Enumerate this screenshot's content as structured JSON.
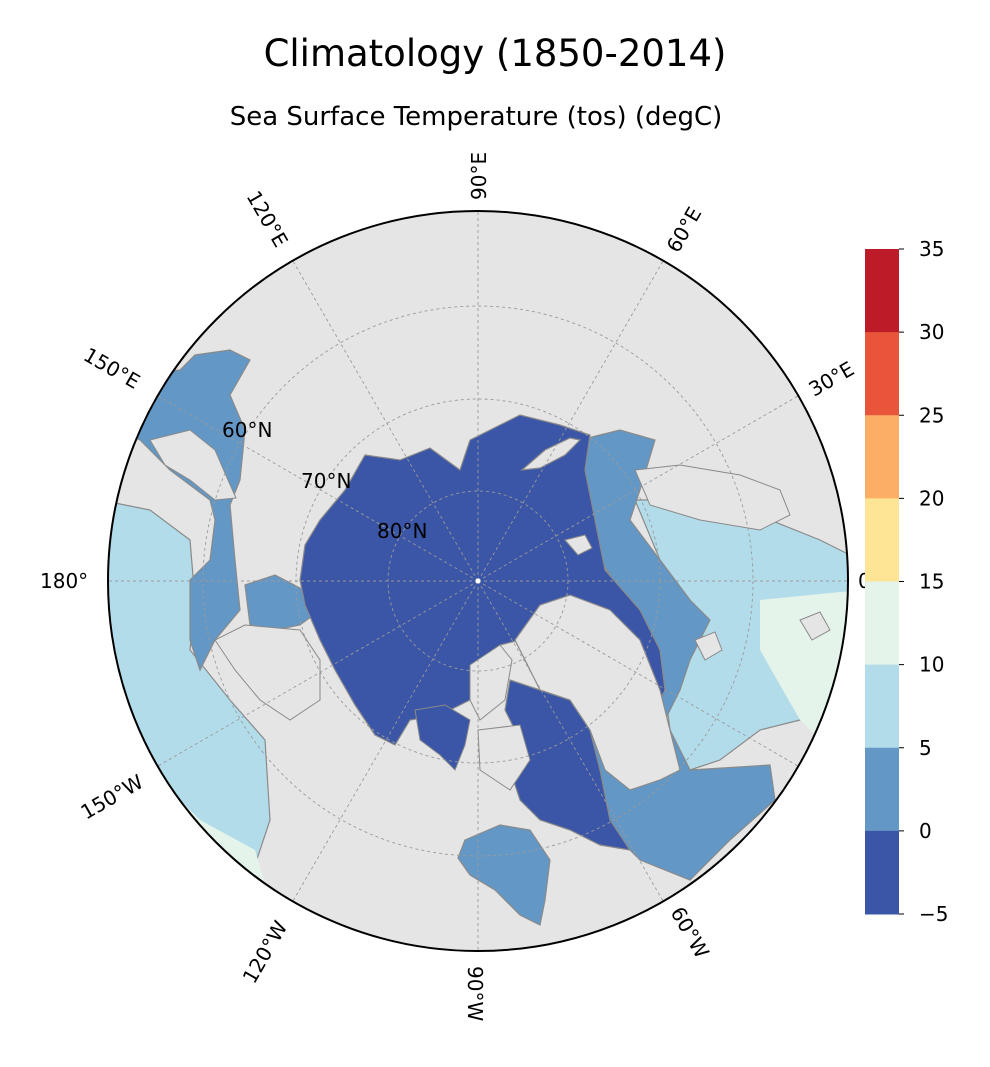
{
  "title": "Climatology (1850-2014)",
  "subtitle": "Sea Surface Temperature (tos) (degC)",
  "map": {
    "projection": "north-polar-stereographic",
    "longitude_labels": [
      "90°E",
      "120°E",
      "60°E",
      "150°E",
      "30°E",
      "180°",
      "0°",
      "150°W",
      "120°W",
      "90°W",
      "60°W"
    ],
    "latitude_labels": [
      "60°N",
      "70°N",
      "80°N"
    ]
  },
  "colorbar": {
    "ticks": [
      "35",
      "30",
      "25",
      "20",
      "15",
      "10",
      "5",
      "0",
      "−5"
    ],
    "bins": [
      {
        "range": "30-35",
        "color": "#bd1b28"
      },
      {
        "range": "25-30",
        "color": "#e9553a"
      },
      {
        "range": "20-25",
        "color": "#fcae64"
      },
      {
        "range": "15-20",
        "color": "#fee596"
      },
      {
        "range": "10-15",
        "color": "#e4f4ea"
      },
      {
        "range": "5-10",
        "color": "#b3dcea"
      },
      {
        "range": "0-5",
        "color": "#6397c6"
      },
      {
        "range": "-5-0",
        "color": "#3b56a6"
      }
    ]
  },
  "colors": {
    "land": "#e5e5e5",
    "coast": "#8a8a8a",
    "ice_ocean": "#3b56a6",
    "cold_ocean": "#6397c6",
    "cool_ocean": "#b3dcea",
    "mild_ocean": "#e4f4ea"
  }
}
